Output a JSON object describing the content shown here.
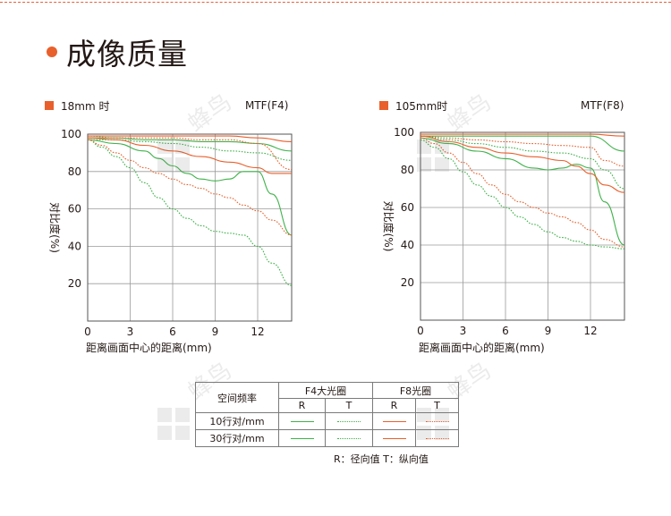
{
  "section_title": "成像质量",
  "colors": {
    "accent": "#e8602c",
    "green": "#3fb24a",
    "orange": "#e8602c"
  },
  "charts": [
    {
      "focal_label": "18mm 时",
      "mtf_label": "MTF(F4)",
      "xlabel": "距离画面中心的距离(mm)",
      "ylabel": "对比度(%)",
      "x_ticks": [
        "0",
        "3",
        "6",
        "9",
        "12"
      ],
      "y_ticks": [
        "20",
        "40",
        "60",
        "80",
        "100"
      ]
    },
    {
      "focal_label": "105mm时",
      "mtf_label": "MTF(F8)",
      "xlabel": "距离画面中心的距离(mm)",
      "ylabel": "对比度(%)",
      "x_ticks": [
        "0",
        "3",
        "6",
        "9",
        "12"
      ],
      "y_ticks": [
        "20",
        "40",
        "60",
        "80",
        "100"
      ]
    }
  ],
  "chart_data": [
    {
      "type": "line",
      "title": "18mm 时",
      "subtitle": "MTF(F4)",
      "xlabel": "距离画面中心的距离(mm)",
      "ylabel": "对比度(%)",
      "xlim": [
        0,
        14.4
      ],
      "ylim": [
        0,
        100
      ],
      "grid": true,
      "series": [
        {
          "color": "green",
          "style": "solid",
          "x": [
            0,
            2,
            4,
            6,
            8,
            10,
            12,
            14.4
          ],
          "y": [
            98,
            98,
            97,
            97,
            96,
            96,
            95,
            91
          ]
        },
        {
          "color": "green",
          "style": "dotted",
          "x": [
            0,
            2,
            4,
            6,
            8,
            10,
            12,
            14.4
          ],
          "y": [
            97,
            97,
            96,
            95,
            93,
            91,
            90,
            86
          ]
        },
        {
          "color": "orange",
          "style": "solid",
          "x": [
            0,
            2,
            4,
            6,
            8,
            10,
            12,
            14.4
          ],
          "y": [
            99,
            99,
            99,
            99,
            99,
            99,
            98,
            96
          ]
        },
        {
          "color": "orange",
          "style": "dotted",
          "x": [
            0,
            2,
            4,
            6,
            8,
            10,
            12,
            14.4
          ],
          "y": [
            99,
            98,
            98,
            98,
            97,
            97,
            95,
            81
          ]
        },
        {
          "color": "green",
          "style": "solid",
          "x": [
            0,
            2,
            4,
            5,
            6,
            7,
            8,
            9,
            10,
            11,
            12,
            13,
            14.4
          ],
          "y": [
            97,
            95,
            91,
            87,
            83,
            79,
            76,
            75,
            76,
            80,
            80,
            68,
            46
          ]
        },
        {
          "color": "green",
          "style": "dotted",
          "x": [
            0,
            1,
            2,
            3,
            4,
            5,
            6,
            7,
            8,
            9,
            10,
            11,
            12,
            13,
            14.4
          ],
          "y": [
            97,
            93,
            88,
            82,
            74,
            66,
            60,
            55,
            51,
            48,
            47,
            46,
            40,
            31,
            19
          ]
        },
        {
          "color": "orange",
          "style": "solid",
          "x": [
            0,
            2,
            4,
            6,
            8,
            10,
            12,
            13,
            14.4
          ],
          "y": [
            98,
            97,
            94,
            91,
            88,
            85,
            82,
            79,
            79
          ]
        },
        {
          "color": "orange",
          "style": "dotted",
          "x": [
            0,
            1,
            2,
            3,
            4,
            5,
            6,
            7,
            8,
            9,
            10,
            11,
            12,
            13,
            14.4
          ],
          "y": [
            97,
            94,
            90,
            86,
            82,
            79,
            76,
            73,
            71,
            68,
            66,
            62,
            59,
            54,
            46
          ]
        }
      ]
    },
    {
      "type": "line",
      "title": "105mm时",
      "subtitle": "MTF(F8)",
      "xlabel": "距离画面中心的距离(mm)",
      "ylabel": "对比度(%)",
      "xlim": [
        0,
        14.4
      ],
      "ylim": [
        0,
        100
      ],
      "grid": true,
      "series": [
        {
          "color": "orange",
          "style": "solid",
          "x": [
            0,
            2,
            4,
            6,
            8,
            10,
            12,
            14.4
          ],
          "y": [
            99,
            99,
            99,
            99,
            99,
            99,
            99,
            98
          ]
        },
        {
          "color": "green",
          "style": "solid",
          "x": [
            0,
            2,
            4,
            6,
            8,
            10,
            12,
            14.4
          ],
          "y": [
            98,
            98,
            98,
            98,
            98,
            98,
            98,
            90
          ]
        },
        {
          "color": "orange",
          "style": "dotted",
          "x": [
            0,
            2,
            4,
            6,
            8,
            10,
            12,
            13,
            14.4
          ],
          "y": [
            98,
            97,
            96,
            95,
            94,
            93,
            92,
            85,
            82
          ]
        },
        {
          "color": "green",
          "style": "dotted",
          "x": [
            0,
            2,
            4,
            6,
            8,
            10,
            12,
            13,
            14.4
          ],
          "y": [
            98,
            96,
            94,
            92,
            90,
            89,
            86,
            80,
            70
          ]
        },
        {
          "color": "green",
          "style": "solid",
          "x": [
            0,
            2,
            4,
            6,
            8,
            9,
            10,
            11,
            12,
            13,
            14.4
          ],
          "y": [
            97,
            94,
            90,
            86,
            81,
            80,
            81,
            83,
            81,
            63,
            40
          ]
        },
        {
          "color": "orange",
          "style": "solid",
          "x": [
            0,
            2,
            4,
            6,
            8,
            10,
            11,
            12,
            13,
            14.4
          ],
          "y": [
            98,
            95,
            92,
            89,
            87,
            85,
            82,
            78,
            72,
            68
          ]
        },
        {
          "color": "orange",
          "style": "dotted",
          "x": [
            0,
            1,
            2,
            3,
            4,
            5,
            6,
            7,
            8,
            9,
            10,
            11,
            12,
            13,
            14.4
          ],
          "y": [
            97,
            94,
            89,
            84,
            78,
            72,
            67,
            63,
            60,
            57,
            55,
            52,
            48,
            43,
            39
          ]
        },
        {
          "color": "green",
          "style": "dotted",
          "x": [
            0,
            1,
            2,
            3,
            4,
            5,
            6,
            7,
            8,
            9,
            10,
            11,
            12,
            13,
            14.4
          ],
          "y": [
            96,
            92,
            86,
            79,
            72,
            66,
            60,
            55,
            51,
            47,
            44,
            42,
            40,
            39,
            38
          ]
        }
      ]
    }
  ],
  "legend": {
    "row_header": "空间频率",
    "col_groups": [
      "F4大光圈",
      "F8光圈"
    ],
    "sub_cols": [
      "R",
      "T",
      "R",
      "T"
    ],
    "rows": [
      "10行对/mm",
      "30行对/mm"
    ],
    "note": "R：径向值  T：纵向值"
  }
}
